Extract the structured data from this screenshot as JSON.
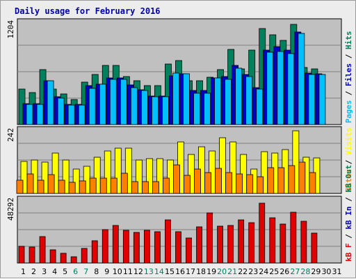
{
  "chart_data": {
    "type": "bar",
    "title": "Daily usage for February 2016",
    "x": [
      "1",
      "2",
      "3",
      "4",
      "5",
      "6",
      "7",
      "8",
      "9",
      "10",
      "11",
      "12",
      "13",
      "14",
      "15",
      "16",
      "17",
      "18",
      "19",
      "20",
      "21",
      "22",
      "23",
      "24",
      "25",
      "26",
      "27",
      "28",
      "29",
      "30",
      "31"
    ],
    "weekend_days": [
      6,
      7,
      13,
      14,
      20,
      21,
      27,
      28
    ],
    "panels": [
      {
        "id": "hits",
        "ymax_label": "1204",
        "ymax": 1204,
        "series": [
          {
            "name": "Hits",
            "color": "#00805c",
            "values": [
              420,
              380,
              650,
              420,
              360,
              300,
              500,
              590,
              700,
              700,
              570,
              520,
              460,
              460,
              720,
              760,
              520,
              520,
              560,
              650,
              890,
              660,
              880,
              1140,
              1060,
              1000,
              1190,
              680,
              660,
              0,
              0
            ]
          },
          {
            "name": "Files",
            "color": "#0000c8",
            "values": [
              250,
              250,
              520,
              330,
              240,
              240,
              460,
              480,
              550,
              550,
              470,
              410,
              340,
              340,
              580,
              600,
              400,
              400,
              550,
              570,
              700,
              590,
              440,
              880,
              920,
              880,
              1100,
              610,
              600,
              0,
              0
            ]
          },
          {
            "name": "Pages",
            "color": "#00c0ff",
            "values": [
              240,
              240,
              520,
              310,
              230,
              230,
              430,
              480,
              540,
              540,
              440,
              400,
              330,
              330,
              610,
              600,
              370,
              370,
              550,
              540,
              670,
              570,
              420,
              860,
              870,
              840,
              1080,
              590,
              590,
              0,
              0
            ]
          }
        ],
        "side_labels": [
          {
            "text": "Pages",
            "color": "#00c0ff"
          },
          {
            "text": " / ",
            "color": "#000000"
          },
          {
            "text": "Files",
            "color": "#0000c8"
          },
          {
            "text": " / ",
            "color": "#000000"
          },
          {
            "text": "Hits",
            "color": "#00805c"
          }
        ]
      },
      {
        "id": "visits",
        "ymax_label": "242",
        "ymax": 242,
        "series": [
          {
            "name": "Visits",
            "color": "#ffff00",
            "values": [
              125,
              130,
              120,
              155,
              130,
              95,
              105,
              140,
              165,
              175,
              175,
              130,
              135,
              135,
              130,
              200,
              150,
              180,
              165,
              215,
              200,
              150,
              95,
              160,
              155,
              170,
              242,
              140,
              138,
              0,
              0
            ]
          },
          {
            "name": "Sites",
            "color": "#ff8000",
            "values": [
              52,
              75,
              52,
              72,
              50,
              42,
              48,
              58,
              58,
              58,
              78,
              45,
              45,
              45,
              60,
              110,
              70,
              95,
              80,
              98,
              80,
              75,
              72,
              65,
              100,
              100,
              108,
              120,
              80,
              0,
              0
            ]
          }
        ],
        "side_labels": [
          {
            "text": "Sites",
            "color": "#ff8000"
          },
          {
            "text": " / ",
            "color": "#000000"
          },
          {
            "text": "Visits",
            "color": "#ffff00"
          }
        ]
      },
      {
        "id": "kbytes",
        "ymax_label": "48292",
        "ymax": 48292,
        "series": [
          {
            "name": "kB F",
            "color": "#e00000",
            "values": [
              13000,
              12500,
              20500,
              10000,
              7500,
              5000,
              11000,
              17000,
              26000,
              29000,
              25000,
              23500,
              25000,
              24000,
              33000,
              24000,
              19500,
              28000,
              38500,
              28500,
              29000,
              33000,
              31000,
              46000,
              35000,
              30000,
              39000,
              32000,
              23000,
              0,
              0
            ]
          }
        ],
        "side_labels": [
          {
            "text": "kB F",
            "color": "#e00000"
          },
          {
            "text": " / ",
            "color": "#000000"
          },
          {
            "text": "kB In",
            "color": "#0000c8"
          },
          {
            "text": " / ",
            "color": "#000000"
          },
          {
            "text": "kB Out",
            "color": "#00805c"
          }
        ]
      }
    ]
  }
}
